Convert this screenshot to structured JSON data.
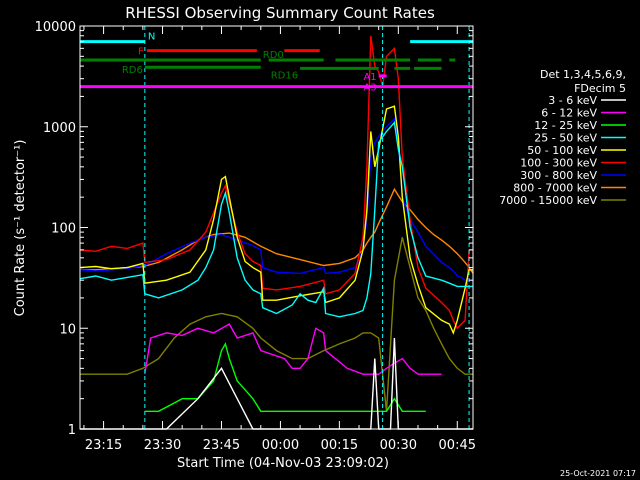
{
  "chart_data": {
    "type": "line",
    "title": "RHESSI Observing Summary Count Rates",
    "xlabel": "Start Time (04-Nov-03 23:09:02)",
    "ylabel": "Count Rate (s⁻¹ detector⁻¹)",
    "y_scale": "log",
    "ylim": [
      1,
      10000
    ],
    "xlim_minutes": [
      0,
      100
    ],
    "grid": false,
    "legend_position": "right",
    "y_ticks": [
      {
        "value": 1,
        "label": "1"
      },
      {
        "value": 10,
        "label": "10"
      },
      {
        "value": 100,
        "label": "100"
      },
      {
        "value": 1000,
        "label": "1000"
      },
      {
        "value": 10000,
        "label": "10000"
      }
    ],
    "x_ticks": [
      {
        "value": 6,
        "label": "23:15"
      },
      {
        "value": 21,
        "label": "23:30"
      },
      {
        "value": 36,
        "label": "23:45"
      },
      {
        "value": 51,
        "label": "00:00"
      },
      {
        "value": 66,
        "label": "00:15"
      },
      {
        "value": 81,
        "label": "00:30"
      },
      {
        "value": 96,
        "label": "00:45"
      }
    ],
    "legend_header": [
      "Det 1,3,4,5,6,9,",
      "FDecim 5"
    ],
    "series": [
      {
        "name": "3 - 6 keV",
        "color": "#ffffff",
        "x": [
          0,
          10,
          16,
          16.5,
          22,
          30,
          36,
          40,
          44,
          46,
          46.5,
          56,
          62,
          62.5,
          68,
          72,
          74,
          75,
          76,
          78,
          79,
          80,
          81,
          83,
          85,
          86,
          88,
          92,
          94,
          95,
          96,
          97,
          98,
          99,
          100
        ],
        "y": [
          1,
          1,
          1,
          1,
          1,
          2,
          4,
          2,
          1,
          1,
          1,
          1,
          1,
          1,
          1,
          1,
          1,
          5,
          1,
          1,
          1,
          8,
          1,
          1,
          1,
          1,
          1,
          1,
          1,
          1,
          1,
          1,
          1,
          1,
          1
        ]
      },
      {
        "name": "6 - 12 keV",
        "color": "#ff00ff",
        "x": [
          16.5,
          18,
          22,
          26,
          30,
          34,
          38,
          40,
          44,
          46,
          52,
          54,
          56,
          58,
          60,
          62,
          62.5,
          68,
          72,
          74,
          76,
          78,
          80,
          82,
          84,
          86,
          88,
          92
        ],
        "y": [
          3.5,
          8,
          9,
          8.5,
          10,
          9,
          11,
          8,
          9,
          6,
          5,
          4,
          4,
          5,
          10,
          9,
          6,
          4,
          3.5,
          3.5,
          3.5,
          4,
          4.5,
          5,
          4,
          3.5,
          3.5,
          3.5
        ]
      },
      {
        "name": "12 - 25 keV",
        "color": "#00ff00",
        "x": [
          16.5,
          20,
          26,
          30,
          34,
          36,
          37,
          38,
          40,
          44,
          46,
          50,
          56,
          62,
          62.5,
          70,
          74,
          76,
          78,
          80,
          82,
          84,
          86,
          88
        ],
        "y": [
          1.5,
          1.5,
          2,
          2,
          3,
          6,
          7,
          5,
          3,
          2,
          1.5,
          1.5,
          1.5,
          1.5,
          1.5,
          1.5,
          1.5,
          1.5,
          1.5,
          2,
          1.5,
          1.5,
          1.5,
          1.5
        ]
      },
      {
        "name": "25 - 50 keV",
        "color": "#00ffff",
        "x": [
          0,
          4,
          8,
          12,
          16,
          16.5,
          20,
          26,
          30,
          32,
          34,
          36,
          37,
          38,
          40,
          42,
          44,
          46,
          46.5,
          50,
          54,
          56,
          58,
          60,
          62,
          62.5,
          66,
          70,
          72,
          73,
          74,
          75,
          76,
          78,
          80,
          81,
          82,
          84,
          86,
          88,
          92,
          94,
          95,
          96,
          98,
          99,
          100
        ],
        "y": [
          31,
          33,
          30,
          32,
          34,
          22,
          20,
          24,
          30,
          40,
          60,
          170,
          220,
          140,
          50,
          30,
          24,
          22,
          16,
          14,
          17,
          22,
          19,
          18,
          25,
          14,
          13,
          14,
          15,
          20,
          35,
          150,
          700,
          900,
          1100,
          600,
          400,
          100,
          50,
          33,
          30,
          28,
          27,
          26,
          26,
          26,
          26
        ]
      },
      {
        "name": "50 - 100 keV",
        "color": "#ffff00",
        "x": [
          0,
          4,
          8,
          12,
          16,
          16.5,
          22,
          28,
          32,
          34,
          36,
          37,
          38,
          40,
          42,
          44,
          46,
          46.5,
          50,
          56,
          62,
          62.5,
          66,
          70,
          72,
          73,
          74,
          75,
          76,
          78,
          80,
          81,
          82,
          84,
          86,
          88,
          92,
          94,
          95,
          96,
          98,
          99,
          100
        ],
        "y": [
          40,
          41,
          39,
          40,
          44,
          28,
          30,
          36,
          60,
          120,
          300,
          320,
          200,
          80,
          46,
          40,
          36,
          19,
          19,
          21,
          23,
          18,
          20,
          30,
          60,
          150,
          900,
          400,
          600,
          1500,
          1600,
          800,
          200,
          50,
          27,
          16,
          12,
          11,
          9,
          12,
          25,
          38,
          38
        ]
      },
      {
        "name": "100 - 300 keV",
        "color": "#ff0000",
        "x": [
          0,
          4,
          8,
          12,
          16,
          16.5,
          22,
          28,
          32,
          34,
          36,
          37,
          38,
          40,
          42,
          44,
          46,
          46.5,
          50,
          56,
          62,
          62.5,
          66,
          70,
          72,
          73,
          74,
          75,
          76,
          77,
          78,
          80,
          81,
          82,
          84,
          86,
          88,
          92,
          94,
          95,
          96,
          98,
          99,
          100
        ],
        "y": [
          60,
          58,
          65,
          62,
          70,
          45,
          48,
          60,
          90,
          140,
          220,
          260,
          180,
          90,
          55,
          46,
          42,
          25,
          24,
          26,
          30,
          22,
          24,
          35,
          80,
          400,
          8000,
          4000,
          3500,
          2500,
          5000,
          6000,
          3000,
          500,
          120,
          40,
          25,
          18,
          15,
          12,
          10,
          12,
          60,
          60
        ]
      },
      {
        "name": "300 - 800 keV",
        "color": "#0000ff",
        "x": [
          0,
          4,
          8,
          12,
          16,
          16.5,
          22,
          28,
          32,
          36,
          40,
          44,
          46,
          46.5,
          50,
          56,
          62,
          62.5,
          66,
          70,
          72,
          73,
          74,
          75,
          76,
          77,
          78,
          80,
          81,
          82,
          84,
          86,
          88,
          92,
          94,
          95,
          96,
          97,
          98,
          99,
          100
        ],
        "y": [
          38,
          37,
          38,
          39,
          42,
          42,
          55,
          70,
          80,
          85,
          75,
          66,
          60,
          40,
          36,
          35,
          40,
          35,
          36,
          40,
          60,
          120,
          500,
          700,
          800,
          900,
          1000,
          1200,
          700,
          200,
          120,
          90,
          65,
          45,
          40,
          37,
          33,
          32,
          30,
          30,
          30
        ]
      },
      {
        "name": "800 - 7000 keV",
        "color": "#ff8800",
        "x": [
          0,
          4,
          8,
          12,
          16,
          20,
          26,
          30,
          34,
          38,
          42,
          46,
          50,
          56,
          62,
          66,
          70,
          72,
          73,
          74,
          75,
          76,
          78,
          80,
          82,
          84,
          86,
          88,
          90,
          92,
          94,
          96,
          98,
          99,
          100
        ],
        "y": [
          38,
          38,
          39,
          40,
          41,
          45,
          60,
          75,
          85,
          88,
          80,
          65,
          55,
          48,
          42,
          44,
          50,
          60,
          70,
          80,
          90,
          110,
          160,
          240,
          180,
          150,
          120,
          100,
          85,
          75,
          65,
          55,
          45,
          40,
          35
        ]
      },
      {
        "name": "7000 - 15000 keV",
        "color": "#808000",
        "x": [
          0,
          4,
          8,
          12,
          16,
          20,
          24,
          28,
          32,
          36,
          40,
          44,
          46,
          50,
          54,
          58,
          62,
          66,
          70,
          72,
          74,
          76,
          78,
          80,
          82,
          84,
          86,
          88,
          90,
          92,
          94,
          96,
          98,
          99,
          100
        ],
        "y": [
          3.5,
          3.5,
          3.5,
          3.5,
          4,
          5,
          8,
          11,
          13,
          14,
          13,
          10,
          8,
          6,
          5,
          5,
          6,
          7,
          8,
          9,
          9,
          8,
          1.5,
          30,
          80,
          40,
          20,
          15,
          10,
          7,
          5,
          4,
          3.5,
          3.5,
          3.5
        ]
      }
    ],
    "annotations": {
      "intervals": [
        {
          "label": "N",
          "color": "#00ffff",
          "y": 7000,
          "segments": [
            [
              0,
              16.5
            ],
            [
              84,
              100
            ]
          ]
        },
        {
          "label": "F",
          "color": "#ff0000",
          "y": 5700,
          "segments": [
            [
              17,
              45
            ],
            [
              52,
              61
            ]
          ]
        },
        {
          "label": "RD0",
          "color": "#008000",
          "y": 4600,
          "segments": [
            [
              0,
              46
            ],
            [
              48,
              62
            ],
            [
              65,
              76
            ],
            [
              76,
              84
            ],
            [
              86,
              92
            ],
            [
              94,
              95.5
            ]
          ]
        },
        {
          "label": "RD6",
          "color": "#008000",
          "y": 3900,
          "segments": [
            [
              16.5,
              46
            ]
          ]
        },
        {
          "label": "RD16",
          "color": "#008000",
          "y": 3800,
          "segments": [
            [
              56,
              76
            ],
            [
              80,
              84
            ],
            [
              85,
              92
            ]
          ]
        },
        {
          "label": "A1",
          "color": "#ff00ff",
          "y": 3200,
          "segments": [
            [
              76,
              78
            ]
          ]
        },
        {
          "label": "A3",
          "color": "#ff00ff",
          "y": 2500,
          "segments": [
            [
              0,
              100
            ]
          ]
        }
      ],
      "vlines": [
        {
          "x": 0,
          "color": "#00ffff",
          "dashed": false
        },
        {
          "x": 16.5,
          "color": "#00ffff",
          "dashed": true
        },
        {
          "x": 77,
          "color": "#00ffff",
          "dashed": true
        },
        {
          "x": 99,
          "color": "#00ffff",
          "dashed": true
        }
      ]
    },
    "timestamp": "25-Oct-2021 07:17"
  }
}
